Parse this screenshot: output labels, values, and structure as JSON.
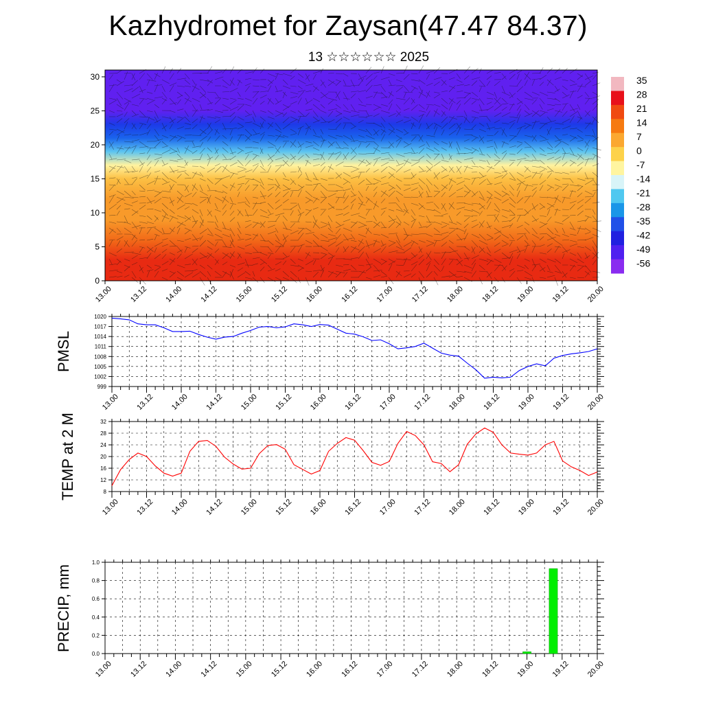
{
  "title": "Kazhydromet for Zaysan(47.47 84.37)",
  "subtitle": "13 ☆☆☆☆☆☆ 2025",
  "time_labels": [
    "13.00",
    "13.12",
    "14.00",
    "14.12",
    "15.00",
    "15.12",
    "16.00",
    "16.12",
    "17.00",
    "17.12",
    "18.00",
    "18.12",
    "19.00",
    "19.12",
    "20.00"
  ],
  "chart_data": [
    {
      "type": "heatmap",
      "name": "upper-air-section",
      "ylim": [
        0,
        31
      ],
      "y_ticks": [
        0,
        5,
        10,
        15,
        20,
        25,
        30
      ],
      "x_ticks": [
        "13.00",
        "13.12",
        "14.00",
        "14.12",
        "15.00",
        "15.12",
        "16.00",
        "16.12",
        "17.00",
        "17.12",
        "18.00",
        "18.12",
        "19.00",
        "19.12",
        "20.00"
      ],
      "colorbar_labels": [
        "35",
        "28",
        "21",
        "14",
        "7",
        "0",
        "-7",
        "-14",
        "-21",
        "-28",
        "-35",
        "-42",
        "-49",
        "-56"
      ],
      "colorbar_colors": [
        "#f2b8c0",
        "#e8101a",
        "#f04a10",
        "#f67a10",
        "#fba830",
        "#fdd24a",
        "#fff5a0",
        "#d8f4f8",
        "#50c8f0",
        "#1a96e8",
        "#2050e8",
        "#2020e0",
        "#5020f0",
        "#8a2cf0"
      ],
      "temperature_profile_approx": {
        "heights": [
          0,
          3,
          6,
          9,
          12,
          15,
          17,
          19,
          21,
          23,
          25,
          27,
          30,
          31
        ],
        "values": [
          28,
          24,
          20,
          14,
          8,
          2,
          -10,
          -22,
          -35,
          -48,
          -56,
          -60,
          -62,
          -62
        ]
      },
      "overlay": "wind vectors"
    },
    {
      "type": "line",
      "name": "PMSL",
      "ylabel": "PMSL",
      "ylim": [
        999,
        1020
      ],
      "y_ticks": [
        999,
        1002,
        1005,
        1008,
        1011,
        1014,
        1017,
        1020
      ],
      "x_ticks": [
        "13.00",
        "13.12",
        "14.00",
        "14.12",
        "15.00",
        "15.12",
        "16.00",
        "16.12",
        "17.00",
        "17.12",
        "18.00",
        "18.12",
        "19.00",
        "19.12",
        "20.00"
      ],
      "grid": true,
      "color": "#0000ff",
      "x": [
        0,
        1,
        2,
        3,
        4,
        5,
        6,
        7,
        8,
        9,
        10,
        11,
        12,
        13,
        14,
        15,
        16,
        17,
        18,
        19,
        20,
        21,
        22,
        23,
        24,
        25,
        26,
        27,
        28,
        29,
        30,
        31,
        32,
        33,
        34,
        35,
        36,
        37,
        38,
        39,
        40,
        41,
        42,
        43,
        44,
        45,
        46,
        47,
        48,
        49,
        50,
        51,
        52,
        53,
        54,
        55,
        56
      ],
      "values": [
        1019.5,
        1019.3,
        1019,
        1017.8,
        1017.5,
        1017.5,
        1016.6,
        1015.5,
        1015.5,
        1015.6,
        1014.6,
        1013.8,
        1013.2,
        1013.8,
        1014,
        1015,
        1015.8,
        1016.8,
        1017,
        1016.6,
        1016.9,
        1017.8,
        1017.5,
        1017,
        1017.6,
        1017.4,
        1016.2,
        1015,
        1014.7,
        1013.9,
        1012.8,
        1013,
        1011.8,
        1010.3,
        1010.6,
        1011,
        1012,
        1010.5,
        1009,
        1008.4,
        1008.1,
        1006,
        1004,
        1001.5,
        1001.8,
        1001.6,
        1001.8,
        1003.8,
        1005,
        1005.8,
        1005.2,
        1007.5,
        1008.3,
        1008.8,
        1009.1,
        1009.5,
        1010.3
      ]
    },
    {
      "type": "line",
      "name": "TEMP at 2 M",
      "ylabel": "TEMP at 2 M",
      "ylim": [
        8,
        32
      ],
      "y_ticks": [
        8,
        12,
        16,
        20,
        24,
        28,
        32
      ],
      "x_ticks": [
        "13.00",
        "13.12",
        "14.00",
        "14.12",
        "15.00",
        "15.12",
        "16.00",
        "16.12",
        "17.00",
        "17.12",
        "18.00",
        "18.12",
        "19.00",
        "19.12",
        "20.00"
      ],
      "grid": true,
      "color": "#ff0000",
      "x": [
        0,
        1,
        2,
        3,
        4,
        5,
        6,
        7,
        8,
        9,
        10,
        11,
        12,
        13,
        14,
        15,
        16,
        17,
        18,
        19,
        20,
        21,
        22,
        23,
        24,
        25,
        26,
        27,
        28,
        29,
        30,
        31,
        32,
        33,
        34,
        35,
        36,
        37,
        38,
        39,
        40,
        41,
        42,
        43,
        44,
        45,
        46,
        47,
        48,
        49,
        50,
        51,
        52,
        53,
        54,
        55,
        56
      ],
      "values": [
        10,
        15.5,
        19,
        21.2,
        20,
        16.8,
        14.3,
        13.3,
        14.3,
        21.8,
        25.2,
        25.5,
        23.5,
        19.8,
        17.4,
        15.7,
        16,
        21,
        23.8,
        24.1,
        22.5,
        17.2,
        15.6,
        14,
        15.2,
        21.8,
        24.5,
        26.5,
        25.6,
        22,
        18,
        17,
        18.3,
        24.5,
        28.6,
        27.2,
        24,
        18.2,
        17.6,
        14.8,
        17.2,
        24.2,
        27.8,
        29.8,
        28.3,
        24,
        21.2,
        20.8,
        20.5,
        21.2,
        24,
        25.2,
        18.5,
        16.5,
        15.2,
        13.5,
        14.7
      ]
    },
    {
      "type": "bar",
      "name": "PRECIP, mm",
      "ylabel": "PRECIP, mm",
      "ylim": [
        0,
        1.0
      ],
      "y_ticks": [
        "0.0",
        "0.2",
        "0.4",
        "0.6",
        "0.8",
        "1.0"
      ],
      "x_ticks": [
        "13.00",
        "13.12",
        "14.00",
        "14.12",
        "15.00",
        "15.12",
        "16.00",
        "16.12",
        "17.00",
        "17.12",
        "18.00",
        "18.12",
        "19.00",
        "19.12",
        "20.00"
      ],
      "grid": true,
      "color": "#00ee00",
      "bars": [
        {
          "x": 48,
          "value": 0.02
        },
        {
          "x": 51,
          "value": 0.93
        }
      ]
    }
  ]
}
